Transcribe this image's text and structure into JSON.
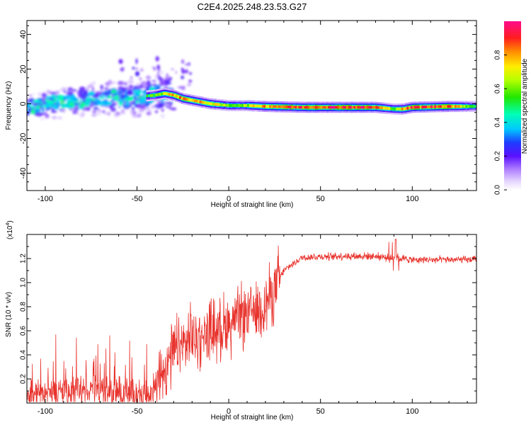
{
  "title": "C2E4.2025.248.23.53.G27",
  "chart_data": [
    {
      "type": "heatmap",
      "name": "spectrogram",
      "xlabel": "Height of straight line (km)",
      "ylabel": "Frequency (Hz)",
      "xlim": [
        -110,
        135
      ],
      "ylim": [
        -50,
        48
      ],
      "xticks": [
        -100,
        -50,
        0,
        50,
        100
      ],
      "yticks": [
        40,
        20,
        0,
        -20,
        -40
      ],
      "colorbar": {
        "label": "Normalized spectral amplitude",
        "range": [
          0.0,
          1.0
        ],
        "ticks": [
          "0.0",
          "0.2",
          "0.4",
          "0.6",
          "0.8"
        ],
        "tick_values": [
          0.0,
          0.2,
          0.4,
          0.6,
          0.8
        ]
      },
      "ridge": {
        "x": [
          -110,
          -100,
          -90,
          -80,
          -70,
          -60,
          -50,
          -40,
          -35,
          -30,
          -25,
          -20,
          -10,
          0,
          10,
          20,
          40,
          60,
          80,
          90,
          95,
          100,
          120,
          135
        ],
        "freq": [
          -2,
          0,
          1,
          2,
          3,
          3.5,
          4,
          5,
          6,
          5,
          3,
          2,
          0,
          -1,
          -1,
          -1.5,
          -2,
          -2,
          -2,
          -3,
          -3,
          -2,
          -1.5,
          -1.5
        ],
        "amplitude": [
          0.3,
          0.3,
          0.35,
          0.35,
          0.4,
          0.4,
          0.45,
          0.6,
          0.7,
          0.8,
          0.85,
          0.8,
          0.75,
          0.6,
          0.65,
          0.85,
          0.9,
          0.95,
          0.9,
          0.6,
          0.8,
          0.9,
          0.9,
          0.5
        ]
      }
    },
    {
      "type": "line",
      "name": "snr",
      "xlabel": "Height of straight line (km)",
      "ylabel": "SNR (10 * v/v)",
      "scale_label": "(x10",
      "scale_exponent": "4",
      "xlim": [
        -110,
        135
      ],
      "ylim": [
        0,
        14000
      ],
      "xticks": [
        -100,
        -50,
        0,
        50,
        100
      ],
      "yticks": [
        2000,
        4000,
        6000,
        8000,
        10000,
        12000
      ],
      "ytick_labels": [
        "0.2",
        "0.4",
        "0.6",
        "0.8",
        "1.0",
        "1.2"
      ],
      "color": "#e8322c",
      "trend": {
        "x": [
          -110,
          -90,
          -70,
          -50,
          -45,
          -40,
          -35,
          -30,
          -20,
          -10,
          0,
          10,
          20,
          25,
          30,
          40,
          60,
          80,
          90,
          95,
          100,
          135
        ],
        "y": [
          800,
          900,
          1000,
          700,
          600,
          1200,
          3000,
          4200,
          5300,
          6000,
          6600,
          7400,
          8300,
          9500,
          11000,
          12100,
          12200,
          12200,
          12000,
          12000,
          11900,
          11900
        ]
      }
    }
  ]
}
